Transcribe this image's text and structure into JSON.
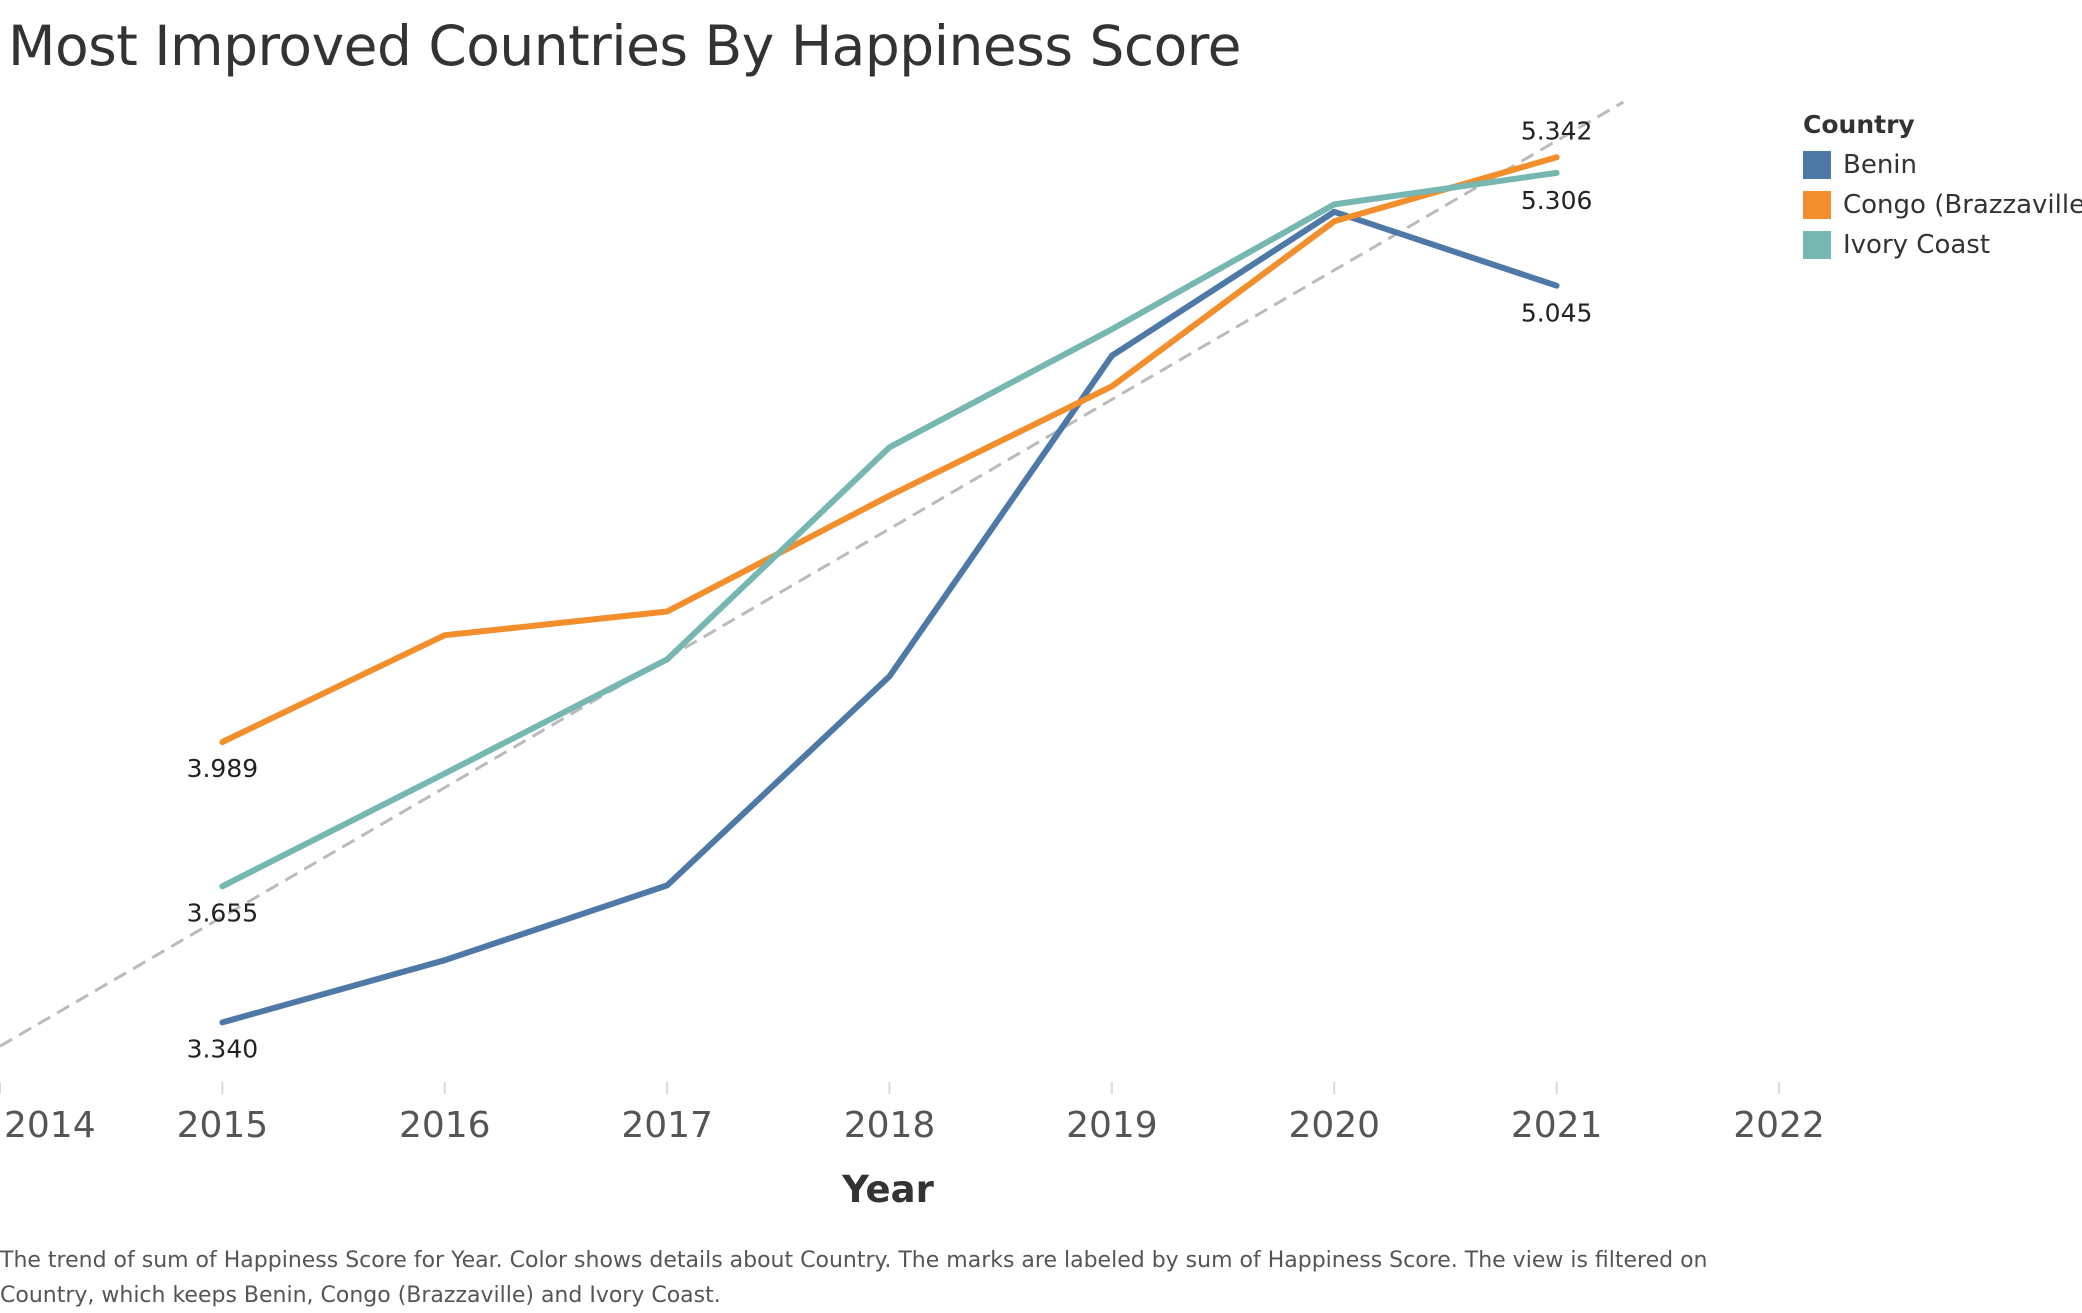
{
  "chart_data": {
    "type": "line",
    "title": "Most Improved Countries By Happiness Score",
    "xlabel": "Year",
    "ylabel": "",
    "x": [
      2015,
      2016,
      2017,
      2018,
      2019,
      2020,
      2021
    ],
    "xlim": [
      2014,
      2022
    ],
    "xticks": [
      "2014",
      "2015",
      "2016",
      "2017",
      "2018",
      "2019",
      "2020",
      "2021",
      "2022"
    ],
    "ylim": [
      3.26,
      5.47
    ],
    "grid": false,
    "legend_title": "Country",
    "legend_position": "right",
    "series": [
      {
        "name": "Benin",
        "color": "#4e79a7",
        "values": [
          3.34,
          3.484,
          3.657,
          4.141,
          4.883,
          5.216,
          5.045
        ]
      },
      {
        "name": "Congo (Brazzaville)",
        "color": "#f28e2b",
        "values": [
          3.989,
          4.236,
          4.291,
          4.559,
          4.812,
          5.194,
          5.342
        ]
      },
      {
        "name": "Ivory Coast",
        "color": "#76b7b2",
        "values": [
          3.655,
          3.916,
          4.18,
          4.671,
          4.944,
          5.233,
          5.306
        ]
      }
    ],
    "labels": [
      {
        "series": "Benin",
        "x": 2015,
        "text": "3.340"
      },
      {
        "series": "Congo (Brazzaville)",
        "x": 2015,
        "text": "3.989"
      },
      {
        "series": "Ivory Coast",
        "x": 2015,
        "text": "3.655"
      },
      {
        "series": "Congo (Brazzaville)",
        "x": 2021,
        "text": "5.342"
      },
      {
        "series": "Ivory Coast",
        "x": 2021,
        "text": "5.306"
      },
      {
        "series": "Benin",
        "x": 2021,
        "text": "5.045"
      }
    ],
    "trend_line": {
      "color": "#bbbbbb",
      "style": "dashed",
      "x1": 2014,
      "y1": 3.285,
      "x2": 2021.3,
      "y2": 5.47
    }
  },
  "caption": "The trend of sum of Happiness Score for Year.  Color shows details about Country.  The marks are labeled by sum of Happiness Score. The view is filtered on Country, which keeps Benin, Congo (Brazzaville) and Ivory Coast."
}
